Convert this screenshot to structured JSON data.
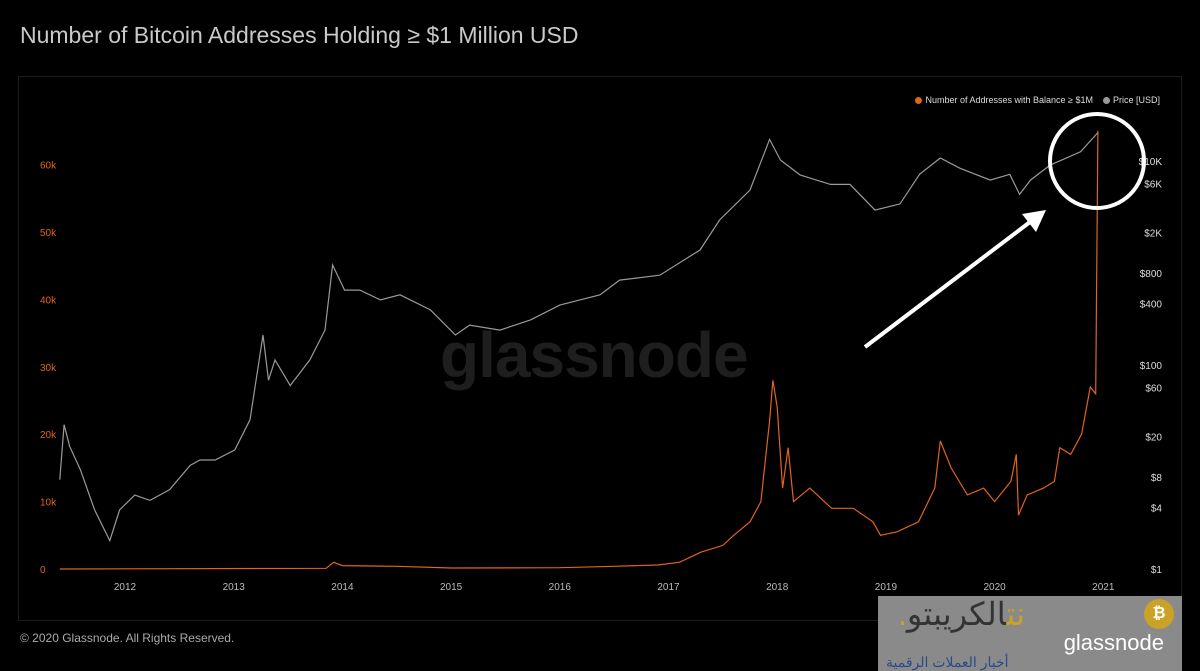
{
  "title": "Number of Bitcoin Addresses Holding ≥ $1 Million USD",
  "footer": "© 2020 Glassnode. All Rights Reserved.",
  "watermark": "glassnode",
  "overlay_logo": {
    "arabic_title_dark": "الكريبتو",
    "arabic_title_gold": ".نت",
    "arabic_subtitle": "أخبار العملات الرقمية",
    "brand": "glassnode"
  },
  "colors": {
    "addresses": "#e0641e",
    "price": "#9a9a9a",
    "annotation": "#ffffff"
  },
  "legend": {
    "addresses": "Number of Addresses with Balance ≥ $1M",
    "price": "Price [USD]",
    "position": "top-right"
  },
  "chart_data": {
    "type": "line",
    "title": "Number of Bitcoin Addresses Holding ≥ $1 Million USD",
    "grid": false,
    "x_ticks": [
      "2012",
      "2013",
      "2014",
      "2015",
      "2016",
      "2017",
      "2018",
      "2019",
      "2020",
      "2021"
    ],
    "x_range": [
      2011.4,
      2021.1
    ],
    "y_left": {
      "ticks": [
        "0",
        "10k",
        "20k",
        "30k",
        "40k",
        "50k",
        "60k"
      ],
      "tick_values": [
        0,
        10000,
        20000,
        30000,
        40000,
        50000,
        60000
      ],
      "range": [
        0,
        67000
      ],
      "scale": "linear"
    },
    "y_right": {
      "ticks": [
        "$1",
        "$4",
        "$8",
        "$20",
        "$60",
        "$100",
        "$400",
        "$800",
        "$2K",
        "$6K",
        "$10K"
      ],
      "tick_values": [
        1,
        4,
        8,
        20,
        60,
        100,
        400,
        800,
        2000,
        6000,
        10000
      ],
      "range": [
        1,
        50000
      ],
      "scale": "log"
    },
    "series": [
      {
        "name": "Number of Addresses with Balance ≥ $1M",
        "axis": "left",
        "points": [
          [
            2011.4,
            0
          ],
          [
            2013.85,
            100
          ],
          [
            2013.92,
            1000
          ],
          [
            2014.0,
            500
          ],
          [
            2014.5,
            400
          ],
          [
            2015.0,
            150
          ],
          [
            2016.0,
            200
          ],
          [
            2016.5,
            400
          ],
          [
            2016.9,
            600
          ],
          [
            2017.1,
            1000
          ],
          [
            2017.3,
            2500
          ],
          [
            2017.5,
            3500
          ],
          [
            2017.6,
            5000
          ],
          [
            2017.75,
            7000
          ],
          [
            2017.85,
            10000
          ],
          [
            2017.93,
            22000
          ],
          [
            2017.96,
            28000
          ],
          [
            2018.0,
            24000
          ],
          [
            2018.05,
            12000
          ],
          [
            2018.1,
            18000
          ],
          [
            2018.15,
            10000
          ],
          [
            2018.3,
            12000
          ],
          [
            2018.5,
            9000
          ],
          [
            2018.7,
            9000
          ],
          [
            2018.88,
            7000
          ],
          [
            2018.95,
            5000
          ],
          [
            2019.1,
            5500
          ],
          [
            2019.3,
            7000
          ],
          [
            2019.45,
            12000
          ],
          [
            2019.5,
            19000
          ],
          [
            2019.6,
            15000
          ],
          [
            2019.75,
            11000
          ],
          [
            2019.9,
            12000
          ],
          [
            2020.0,
            10000
          ],
          [
            2020.15,
            13000
          ],
          [
            2020.2,
            17000
          ],
          [
            2020.22,
            8000
          ],
          [
            2020.3,
            11000
          ],
          [
            2020.45,
            12000
          ],
          [
            2020.55,
            13000
          ],
          [
            2020.6,
            18000
          ],
          [
            2020.7,
            17000
          ],
          [
            2020.8,
            20000
          ],
          [
            2020.88,
            27000
          ],
          [
            2020.93,
            26000
          ],
          [
            2020.95,
            65000
          ]
        ]
      },
      {
        "name": "Price [USD]",
        "axis": "right",
        "points": [
          [
            2011.4,
            7.5
          ],
          [
            2011.44,
            26
          ],
          [
            2011.49,
            16
          ],
          [
            2011.59,
            9.4
          ],
          [
            2011.72,
            3.8
          ],
          [
            2011.86,
            1.9
          ],
          [
            2011.95,
            3.8
          ],
          [
            2012.09,
            5.3
          ],
          [
            2012.23,
            4.7
          ],
          [
            2012.41,
            6
          ],
          [
            2012.6,
            10.4
          ],
          [
            2012.69,
            11.7
          ],
          [
            2012.83,
            11.7
          ],
          [
            2013.01,
            14.7
          ],
          [
            2013.15,
            29
          ],
          [
            2013.27,
            197
          ],
          [
            2013.32,
            71
          ],
          [
            2013.38,
            112
          ],
          [
            2013.52,
            63
          ],
          [
            2013.7,
            112
          ],
          [
            2013.84,
            220
          ],
          [
            2013.91,
            955
          ],
          [
            2014.02,
            543
          ],
          [
            2014.16,
            543
          ],
          [
            2014.35,
            435
          ],
          [
            2014.53,
            488
          ],
          [
            2014.81,
            347
          ],
          [
            2015.04,
            197
          ],
          [
            2015.17,
            246
          ],
          [
            2015.45,
            220
          ],
          [
            2015.73,
            277
          ],
          [
            2016.0,
            387
          ],
          [
            2016.37,
            488
          ],
          [
            2016.55,
            680
          ],
          [
            2016.92,
            760
          ],
          [
            2017.29,
            1340
          ],
          [
            2017.47,
            2640
          ],
          [
            2017.75,
            5200
          ],
          [
            2017.93,
            16300
          ],
          [
            2018.03,
            10200
          ],
          [
            2018.21,
            7300
          ],
          [
            2018.49,
            5900
          ],
          [
            2018.67,
            5900
          ],
          [
            2018.9,
            3300
          ],
          [
            2019.13,
            3800
          ],
          [
            2019.31,
            7400
          ],
          [
            2019.5,
            10700
          ],
          [
            2019.68,
            8500
          ],
          [
            2019.96,
            6500
          ],
          [
            2020.14,
            7400
          ],
          [
            2020.23,
            4700
          ],
          [
            2020.33,
            6500
          ],
          [
            2020.51,
            9100
          ],
          [
            2020.79,
            12300
          ],
          [
            2020.95,
            19000
          ]
        ]
      }
    ],
    "annotations": [
      "circle around late-2020 spike",
      "arrow pointing to circle"
    ]
  }
}
